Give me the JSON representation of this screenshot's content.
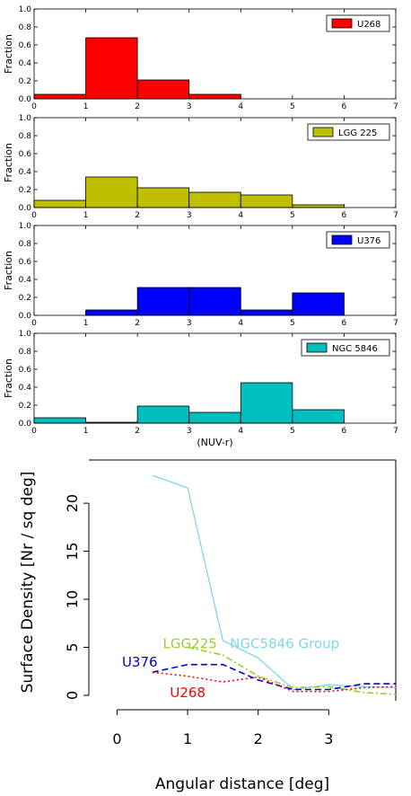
{
  "chart_data": [
    {
      "type": "histogram",
      "ylabel": "Fraction",
      "xlabel": "",
      "xlim": [
        0,
        7
      ],
      "ylim": [
        0,
        1.0
      ],
      "xticks": [
        "0",
        "1",
        "2",
        "3",
        "4",
        "5",
        "6",
        "7"
      ],
      "yticks": [
        "0.0",
        "0.2",
        "0.4",
        "0.6",
        "0.8",
        "1.0"
      ],
      "bin_edges": [
        0,
        1,
        2,
        3,
        4,
        5,
        6
      ],
      "series": [
        {
          "name": "U268",
          "color": "#ff0000",
          "values": [
            0.05,
            0.68,
            0.21,
            0.05,
            0.0,
            0.0
          ]
        }
      ],
      "legend": "top-right"
    },
    {
      "type": "histogram",
      "ylabel": "Fraction",
      "xlabel": "",
      "xlim": [
        0,
        7
      ],
      "ylim": [
        0,
        1.0
      ],
      "xticks": [
        "0",
        "1",
        "2",
        "3",
        "4",
        "5",
        "6",
        "7"
      ],
      "yticks": [
        "0.0",
        "0.2",
        "0.4",
        "0.6",
        "0.8",
        "1.0"
      ],
      "bin_edges": [
        0,
        1,
        2,
        3,
        4,
        5,
        6
      ],
      "series": [
        {
          "name": "LGG 225",
          "color": "#bfbf00",
          "values": [
            0.08,
            0.34,
            0.22,
            0.17,
            0.14,
            0.03
          ]
        }
      ],
      "legend": "top-right"
    },
    {
      "type": "histogram",
      "ylabel": "Fraction",
      "xlabel": "",
      "xlim": [
        0,
        7
      ],
      "ylim": [
        0,
        1.0
      ],
      "xticks": [
        "0",
        "1",
        "2",
        "3",
        "4",
        "5",
        "6",
        "7"
      ],
      "yticks": [
        "0.0",
        "0.2",
        "0.4",
        "0.6",
        "0.8",
        "1.0"
      ],
      "bin_edges": [
        0,
        1,
        2,
        3,
        4,
        5,
        6
      ],
      "series": [
        {
          "name": "U376",
          "color": "#0000ff",
          "values": [
            0.0,
            0.06,
            0.31,
            0.31,
            0.06,
            0.25
          ]
        }
      ],
      "legend": "top-right"
    },
    {
      "type": "histogram",
      "ylabel": "Fraction",
      "xlabel": "(NUV-r)",
      "xlim": [
        0,
        7
      ],
      "ylim": [
        0,
        1.0
      ],
      "xticks": [
        "0",
        "1",
        "2",
        "3",
        "4",
        "5",
        "6",
        "7"
      ],
      "yticks": [
        "0.0",
        "0.2",
        "0.4",
        "0.6",
        "0.8",
        "1.0"
      ],
      "bin_edges": [
        0,
        1,
        2,
        3,
        4,
        5,
        6
      ],
      "series": [
        {
          "name": "NGC 5846",
          "color": "#00bfbf",
          "values": [
            0.06,
            0.01,
            0.19,
            0.12,
            0.45,
            0.15
          ]
        }
      ],
      "legend": "top-right"
    },
    {
      "type": "line",
      "xlabel": "Angular distance [deg]",
      "ylabel": "Surface Density [Nr / sq deg]",
      "xlim": [
        -0.4,
        3.95
      ],
      "ylim": [
        -1.5,
        24.5
      ],
      "xticks": [
        0,
        1,
        2,
        3
      ],
      "yticks": [
        0,
        5,
        10,
        15,
        20
      ],
      "grid": false,
      "series": [
        {
          "name": "NGC5846 Group",
          "color": "#7fd8e8",
          "dash": "solid",
          "x": [
            0.5,
            1.0,
            1.5,
            2.0,
            2.5,
            3.0,
            3.5,
            3.95
          ],
          "y": [
            22.9,
            21.6,
            5.7,
            3.9,
            0.6,
            1.1,
            0.9,
            0.8
          ]
        },
        {
          "name": "LGG225",
          "color": "#9acd32",
          "dash": "dashdot",
          "x": [
            1.0,
            1.5,
            2.0,
            2.5,
            3.0,
            3.5,
            3.95
          ],
          "y": [
            5.0,
            4.2,
            2.0,
            0.8,
            0.9,
            0.3,
            0.1
          ]
        },
        {
          "name": "U376",
          "color": "#0000cc",
          "dash": "dashed",
          "x": [
            0.5,
            1.0,
            1.5,
            2.0,
            2.5,
            3.0,
            3.5,
            3.95
          ],
          "y": [
            2.4,
            3.2,
            3.2,
            1.6,
            0.6,
            0.6,
            1.2,
            1.2
          ]
        },
        {
          "name": "U268",
          "color": "#ff0000",
          "dash": "dotted",
          "x": [
            0.5,
            1.0,
            1.5,
            2.0,
            2.5,
            3.0,
            3.5,
            3.95
          ],
          "y": [
            2.4,
            2.0,
            1.4,
            1.9,
            0.4,
            0.4,
            0.8,
            0.9
          ]
        }
      ],
      "annotations": [
        {
          "text": "NGC5846 Group",
          "series": "NGC5846 Group",
          "x": 1.6,
          "y": 4.9
        },
        {
          "text": "LGG225",
          "series": "LGG225",
          "x": 0.65,
          "y": 4.9
        },
        {
          "text": "U376",
          "series": "U376",
          "x": 0.07,
          "y": 3.0
        },
        {
          "text": "U268",
          "series": "U268",
          "x": 0.75,
          "y": -0.2
        }
      ]
    }
  ]
}
